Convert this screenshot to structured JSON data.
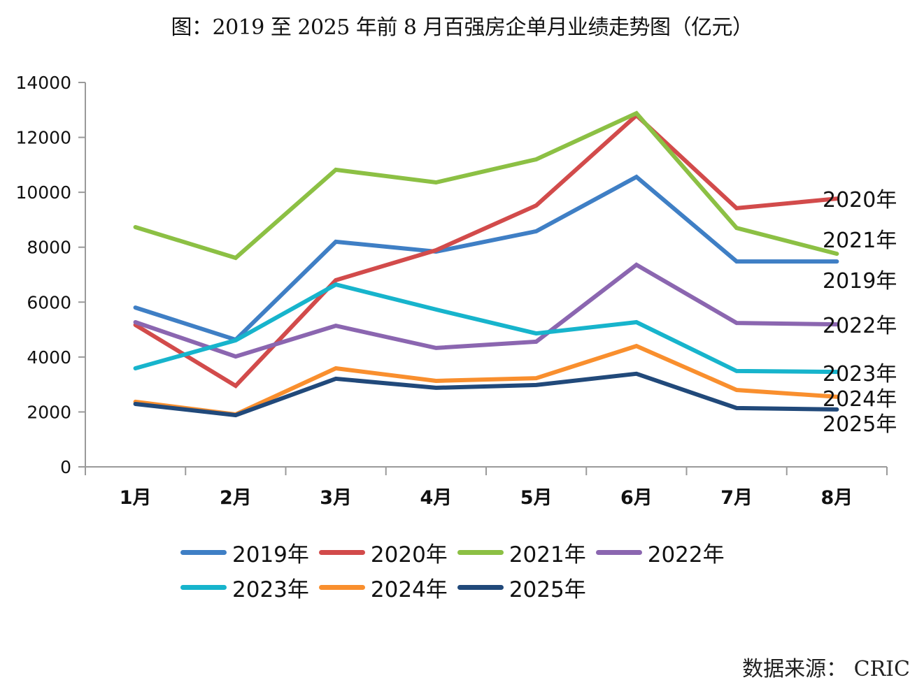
{
  "chart_data": {
    "type": "line",
    "title": "图：2019 至 2025 年前 8 月百强房企单月业绩走势图（亿元）",
    "xlabel": "",
    "ylabel": "",
    "categories": [
      "1月",
      "2月",
      "3月",
      "4月",
      "5月",
      "6月",
      "7月",
      "8月"
    ],
    "ylim": [
      0,
      14000
    ],
    "yticks": [
      0,
      2000,
      4000,
      6000,
      8000,
      10000,
      12000,
      14000
    ],
    "grid": false,
    "legend_position": "bottom",
    "series": [
      {
        "name": "2019年",
        "color": "#3f7fc5",
        "values": [
          5800,
          4630,
          8200,
          7840,
          8580,
          10560,
          7480,
          7480
        ]
      },
      {
        "name": "2020年",
        "color": "#d24b4b",
        "values": [
          5170,
          2950,
          6800,
          7890,
          9520,
          12800,
          9420,
          9770
        ]
      },
      {
        "name": "2021年",
        "color": "#8cc044",
        "values": [
          8730,
          7610,
          10820,
          10360,
          11200,
          12880,
          8700,
          7760
        ]
      },
      {
        "name": "2022年",
        "color": "#8b66b0",
        "values": [
          5270,
          4020,
          5140,
          4330,
          4560,
          7360,
          5240,
          5190
        ]
      },
      {
        "name": "2023年",
        "color": "#17b4cc",
        "values": [
          3590,
          4610,
          6640,
          5730,
          4860,
          5270,
          3490,
          3460
        ]
      },
      {
        "name": "2024年",
        "color": "#f98f2e",
        "values": [
          2370,
          1910,
          3590,
          3130,
          3230,
          4400,
          2800,
          2550
        ]
      },
      {
        "name": "2025年",
        "color": "#21497a",
        "values": [
          2290,
          1880,
          3210,
          2880,
          2980,
          3390,
          2140,
          2090
        ]
      }
    ],
    "end_labels": [
      {
        "series": "2020年",
        "text": "2020年"
      },
      {
        "series": "2021年",
        "text": "2021年"
      },
      {
        "series": "2019年",
        "text": "2019年"
      },
      {
        "series": "2022年",
        "text": "2022年"
      },
      {
        "series": "2023年",
        "text": "2023年"
      },
      {
        "series": "2024年",
        "text": "2024年"
      },
      {
        "series": "2025年",
        "text": "2025年"
      }
    ],
    "source": "数据来源： CRIC"
  }
}
